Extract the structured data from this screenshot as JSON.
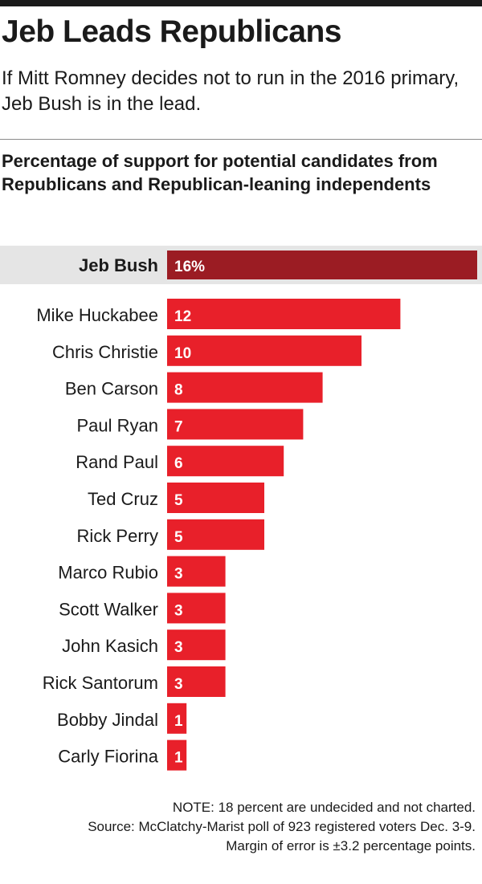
{
  "header": {
    "title": "Jeb Leads Republicans",
    "subtitle": "If Mitt Romney decides not to run in the 2016 primary, Jeb Bush is in the lead."
  },
  "chart_data": {
    "type": "bar",
    "orientation": "horizontal",
    "title": "Percentage of support for potential candidates from Republicans and Republican-leaning independents",
    "categories": [
      "Jeb Bush",
      "Mike Huckabee",
      "Chris Christie",
      "Ben Carson",
      "Paul Ryan",
      "Rand Paul",
      "Ted Cruz",
      "Rick Perry",
      "Marco Rubio",
      "Scott Walker",
      "John Kasich",
      "Rick Santorum",
      "Bobby Jindal",
      "Carly Fiorina"
    ],
    "values": [
      16,
      12,
      10,
      8,
      7,
      6,
      5,
      5,
      3,
      3,
      3,
      3,
      1,
      1
    ],
    "value_labels": [
      "16%",
      "12",
      "10",
      "8",
      "7",
      "6",
      "5",
      "5",
      "3",
      "3",
      "3",
      "3",
      "1",
      "1"
    ],
    "highlighted": "Jeb Bush",
    "colors": {
      "highlight": "#9b1c23",
      "bar": "#e8202a",
      "highlight_band": "#e5e5e5"
    },
    "grid": false,
    "legend": "none"
  },
  "notes": {
    "note": "NOTE: 18 percent are undecided and not charted.",
    "source": "Source: McClatchy-Marist poll of 923 registered voters Dec. 3-9.",
    "margin": "Margin of error is ±3.2 percentage points."
  }
}
